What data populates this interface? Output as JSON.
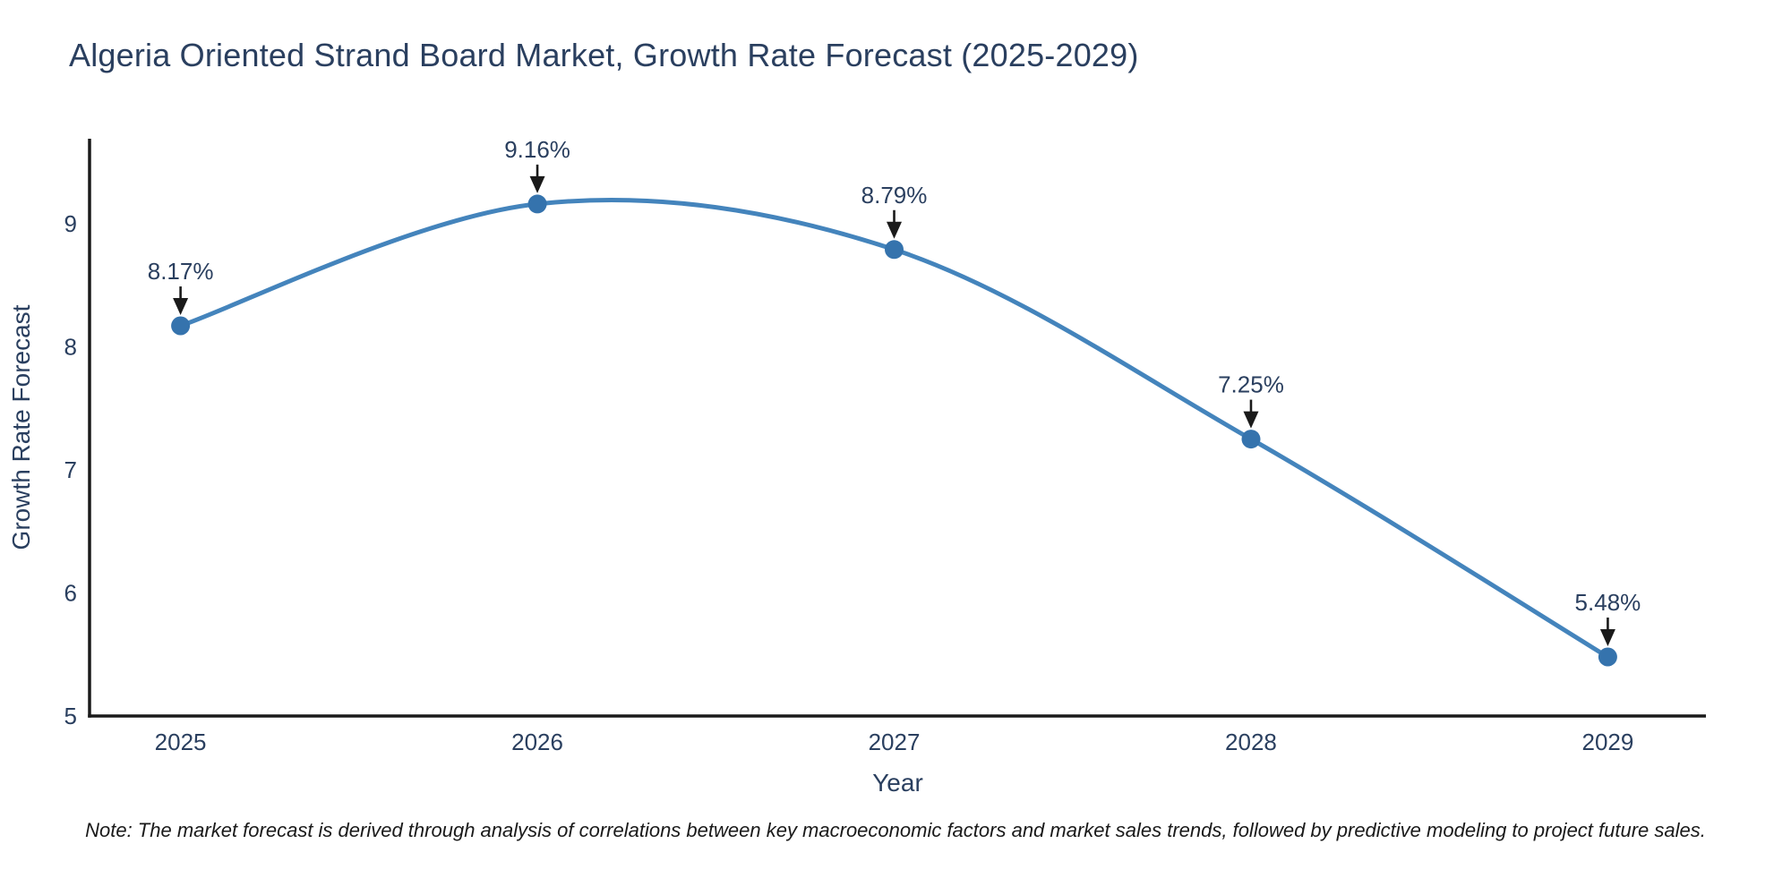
{
  "chart_data": {
    "type": "line",
    "title": "Algeria Oriented Strand Board Market, Growth Rate Forecast (2025-2029)",
    "xlabel": "Year",
    "ylabel": "Growth Rate Forecast",
    "x": [
      2025,
      2026,
      2027,
      2028,
      2029
    ],
    "y": [
      8.17,
      9.16,
      8.79,
      7.25,
      5.48
    ],
    "point_labels": [
      "8.17%",
      "9.16%",
      "8.79%",
      "7.25%",
      "5.48%"
    ],
    "x_ticks": [
      "2025",
      "2026",
      "2027",
      "2028",
      "2029"
    ],
    "y_ticks": [
      5,
      6,
      7,
      8,
      9
    ],
    "xlim": [
      2024.745,
      2029.275
    ],
    "ylim": [
      5,
      9.69
    ],
    "grid": false,
    "legend": "none",
    "line_shape": "spline",
    "annotations_have_arrows": true,
    "colors": {
      "line": "#4484bc",
      "marker": "#3573ad",
      "axis": "#1a1a1a",
      "title": "#2a3f5f",
      "tick": "#2a3f5f",
      "axis_title": "#2a3f5f",
      "annotation_text": "#2a3f5f",
      "arrow": "#1a1a1a",
      "background": "#ffffff"
    }
  },
  "note": {
    "text": "Note: The market forecast is derived through analysis of correlations between key macroeconomic factors and market sales trends, followed by predictive modeling to project future sales."
  }
}
